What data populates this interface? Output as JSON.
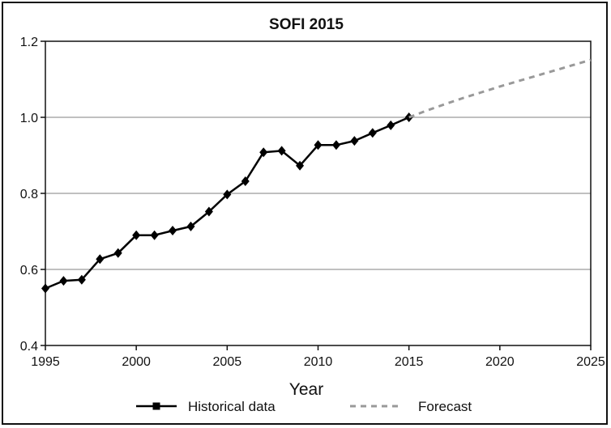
{
  "chart_data": {
    "type": "line",
    "title": "SOFI 2015",
    "xlabel": "Year",
    "ylabel": "",
    "xlim": [
      1995,
      2025
    ],
    "ylim": [
      0.4,
      1.2
    ],
    "x_ticks": [
      1995,
      2000,
      2005,
      2010,
      2015,
      2020,
      2025
    ],
    "y_ticks": [
      "0.4",
      "0.6",
      "0.8",
      "1.0",
      "1.2"
    ],
    "grid": "horizontal",
    "legend_position": "bottom",
    "series": [
      {
        "name": "Historical data",
        "style": "solid-diamond",
        "color": "#000000",
        "x": [
          1995,
          1996,
          1997,
          1998,
          1999,
          2000,
          2001,
          2002,
          2003,
          2004,
          2005,
          2006,
          2007,
          2008,
          2009,
          2010,
          2011,
          2012,
          2013,
          2014,
          2015
        ],
        "y": [
          0.55,
          0.57,
          0.573,
          0.627,
          0.643,
          0.69,
          0.69,
          0.702,
          0.713,
          0.752,
          0.797,
          0.832,
          0.908,
          0.912,
          0.873,
          0.927,
          0.927,
          0.938,
          0.959,
          0.979,
          1.0
        ]
      },
      {
        "name": "Forecast",
        "style": "dashed",
        "color": "#999999",
        "x": [
          2015,
          2016,
          2017,
          2018,
          2019,
          2020,
          2021,
          2022,
          2023,
          2024,
          2025
        ],
        "y": [
          1.0,
          1.018,
          1.035,
          1.051,
          1.066,
          1.081,
          1.095,
          1.109,
          1.123,
          1.137,
          1.151
        ]
      }
    ]
  }
}
